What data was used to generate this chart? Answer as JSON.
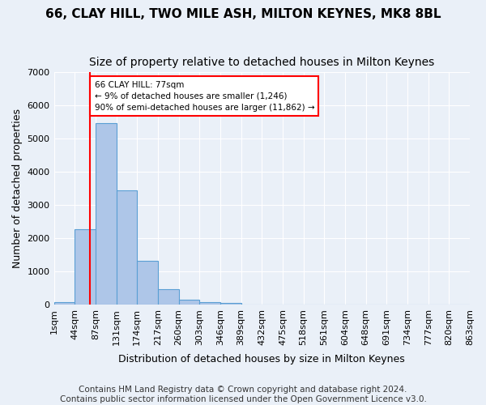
{
  "title1": "66, CLAY HILL, TWO MILE ASH, MILTON KEYNES, MK8 8BL",
  "title2": "Size of property relative to detached houses in Milton Keynes",
  "xlabel": "Distribution of detached houses by size in Milton Keynes",
  "ylabel": "Number of detached properties",
  "footer": "Contains HM Land Registry data © Crown copyright and database right 2024.\nContains public sector information licensed under the Open Government Licence v3.0.",
  "bar_values": [
    75,
    2270,
    5470,
    3450,
    1310,
    460,
    155,
    80,
    55,
    0,
    0,
    0,
    0,
    0,
    0,
    0,
    0,
    0,
    0,
    0
  ],
  "tick_labels": [
    "1sqm",
    "44sqm",
    "87sqm",
    "131sqm",
    "174sqm",
    "217sqm",
    "260sqm",
    "303sqm",
    "346sqm",
    "389sqm",
    "432sqm",
    "475sqm",
    "518sqm",
    "561sqm",
    "604sqm",
    "648sqm",
    "691sqm",
    "734sqm",
    "777sqm",
    "820sqm",
    "863sqm"
  ],
  "bar_color": "#aec6e8",
  "bar_edge_color": "#5a9fd4",
  "property_line_bin": 1.75,
  "annotation_text": "66 CLAY HILL: 77sqm\n← 9% of detached houses are smaller (1,246)\n90% of semi-detached houses are larger (11,862) →",
  "annotation_box_color": "white",
  "annotation_box_edge": "red",
  "ylim": [
    0,
    7000
  ],
  "yticks": [
    0,
    1000,
    2000,
    3000,
    4000,
    5000,
    6000,
    7000
  ],
  "background_color": "#eaf0f8",
  "grid_color": "#ffffff",
  "title_fontsize": 11,
  "subtitle_fontsize": 10,
  "axis_label_fontsize": 9,
  "tick_fontsize": 8,
  "footer_fontsize": 7.5
}
